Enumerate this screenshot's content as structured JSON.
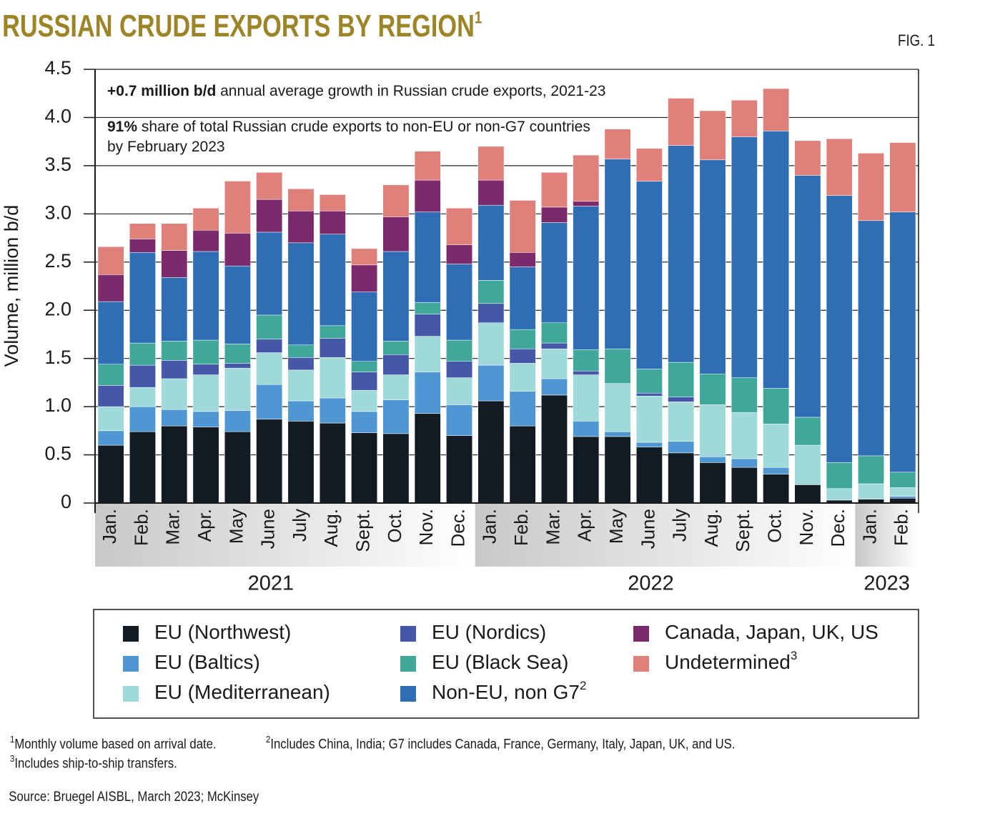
{
  "chart_data": {
    "type": "stacked_bar",
    "title": "RUSSIAN CRUDE EXPORTS BY REGION",
    "title_note": "1",
    "figure_label": "FIG. 1",
    "y_label": "Volume, million b/d",
    "annotations": [
      {
        "bold": "+0.7 million b/d",
        "text": "annual average growth in Russian crude exports, 2021-23"
      },
      {
        "bold": "91%",
        "text": "share of total Russian crude exports to non-EU or non-G7 countries by February 2023"
      }
    ],
    "categories": [
      "Jan.",
      "Feb.",
      "Mar.",
      "Apr.",
      "May",
      "June",
      "July",
      "Aug.",
      "Sept.",
      "Oct.",
      "Nov.",
      "Dec.",
      "Jan.",
      "Feb.",
      "Mar.",
      "Apr.",
      "May",
      "June",
      "July",
      "Aug.",
      "Sept.",
      "Oct.",
      "Nov.",
      "Dec.",
      "Jan.",
      "Feb."
    ],
    "category_groups": [
      {
        "label": "2021",
        "count": 12
      },
      {
        "label": "2022",
        "count": 12
      },
      {
        "label": "2023",
        "count": 2
      }
    ],
    "series": [
      {
        "name": "EU (Northwest)",
        "color": "#121b24",
        "values": [
          0.6,
          0.74,
          0.8,
          0.79,
          0.74,
          0.87,
          0.85,
          0.83,
          0.73,
          0.72,
          0.93,
          0.7,
          1.06,
          0.8,
          1.12,
          0.69,
          0.69,
          0.58,
          0.52,
          0.42,
          0.37,
          0.3,
          0.19,
          0.03,
          0.04,
          0.05
        ]
      },
      {
        "name": "EU (Baltics)",
        "color": "#4f97d3",
        "values": [
          0.15,
          0.26,
          0.17,
          0.16,
          0.22,
          0.36,
          0.21,
          0.26,
          0.22,
          0.35,
          0.43,
          0.32,
          0.37,
          0.36,
          0.17,
          0.16,
          0.05,
          0.05,
          0.12,
          0.06,
          0.09,
          0.07,
          0,
          0,
          0,
          0.02
        ]
      },
      {
        "name": "EU (Mediterranean)",
        "color": "#9fd9d9",
        "values": [
          0.25,
          0.2,
          0.32,
          0.38,
          0.44,
          0.33,
          0.32,
          0.42,
          0.22,
          0.26,
          0.37,
          0.28,
          0.44,
          0.29,
          0.31,
          0.48,
          0.5,
          0.48,
          0.41,
          0.54,
          0.48,
          0.45,
          0.41,
          0.12,
          0.16,
          0.09
        ]
      },
      {
        "name": "EU (Nordics)",
        "color": "#4558a8",
        "values": [
          0.22,
          0.23,
          0.19,
          0.11,
          0.05,
          0.14,
          0.13,
          0.2,
          0.19,
          0.21,
          0.23,
          0.17,
          0.2,
          0.15,
          0.06,
          0.04,
          0,
          0.03,
          0.05,
          0,
          0,
          0,
          0,
          0,
          0,
          0
        ]
      },
      {
        "name": "EU (Black Sea)",
        "color": "#40a89b",
        "values": [
          0.22,
          0.23,
          0.2,
          0.25,
          0.2,
          0.25,
          0.13,
          0.13,
          0.11,
          0.14,
          0.12,
          0.22,
          0.24,
          0.2,
          0.21,
          0.22,
          0.36,
          0.25,
          0.36,
          0.32,
          0.36,
          0.37,
          0.29,
          0.27,
          0.29,
          0.16
        ]
      },
      {
        "name": "Non-EU, non G7",
        "note": "2",
        "color": "#2f6db5",
        "values": [
          0.65,
          0.94,
          0.66,
          0.92,
          0.81,
          0.86,
          1.06,
          0.95,
          0.72,
          0.93,
          0.94,
          0.79,
          0.78,
          0.65,
          1.04,
          1.49,
          1.97,
          1.95,
          2.25,
          2.22,
          2.5,
          2.67,
          2.51,
          2.77,
          2.44,
          2.7
        ]
      },
      {
        "name": "Canada, Japan, UK, US",
        "color": "#7b2a6b",
        "values": [
          0.28,
          0.14,
          0.28,
          0.22,
          0.34,
          0.34,
          0.33,
          0.24,
          0.28,
          0.36,
          0.33,
          0.2,
          0.26,
          0.15,
          0.16,
          0.05,
          0,
          0,
          0,
          0,
          0,
          0,
          0,
          0,
          0,
          0
        ]
      },
      {
        "name": "Undetermined",
        "note": "3",
        "color": "#e0807a",
        "values": [
          0.29,
          0.16,
          0.28,
          0.23,
          0.54,
          0.28,
          0.23,
          0.17,
          0.17,
          0.33,
          0.3,
          0.38,
          0.35,
          0.54,
          0.36,
          0.48,
          0.31,
          0.34,
          0.49,
          0.51,
          0.38,
          0.44,
          0.36,
          0.59,
          0.7,
          0.72
        ]
      }
    ],
    "ylim": [
      0,
      4.5
    ],
    "yticks": [
      0,
      0.5,
      {
        "value": 1,
        "label": "1.0"
      },
      1.5,
      {
        "value": 2,
        "label": "2.0"
      },
      2.5,
      {
        "value": 3,
        "label": "3.0"
      },
      3.5,
      {
        "value": 4,
        "label": "4.0"
      },
      4.5
    ],
    "grid": true,
    "footnotes": [
      {
        "mark": "1",
        "text": "Monthly volume based on arrival date."
      },
      {
        "mark": "2",
        "text": "Includes China, India; G7 includes Canada, France, Germany, Italy, Japan, UK, and US."
      },
      {
        "mark": "3",
        "text": "Includes ship-to-ship transfers."
      }
    ],
    "source": "Source: Bruegel AISBL, March 2023; McKinsey"
  }
}
